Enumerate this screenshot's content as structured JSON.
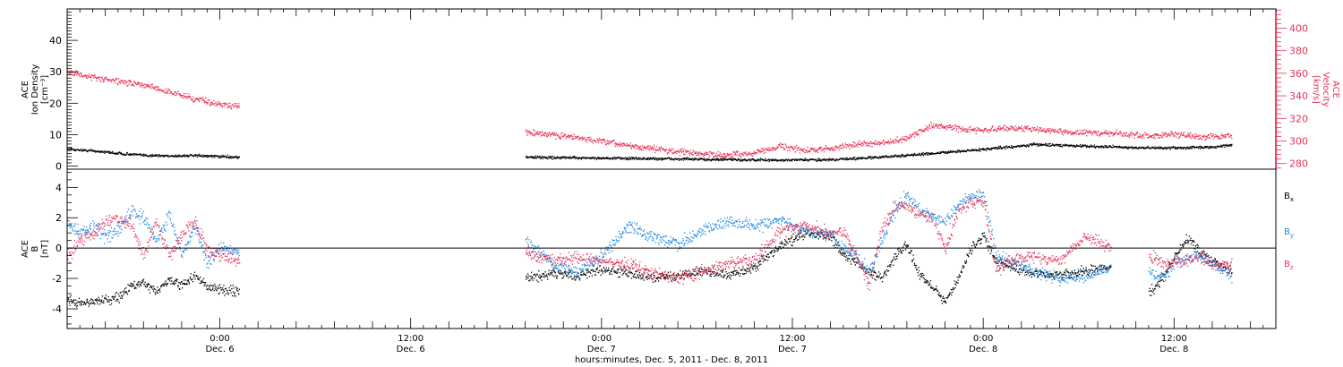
{
  "colors": {
    "black": "#000000",
    "red": "#e8325a",
    "blue": "#1e88e5",
    "axis": "#000000"
  },
  "chart_data": [
    {
      "type": "scatter",
      "panel": "top",
      "ylabel_lines": [
        "ACE",
        "Ion Density",
        "[cm⁻³]"
      ],
      "y2label_lines": [
        "ACE",
        "Velocity",
        "[km/s]"
      ],
      "ylim": [
        -1,
        50
      ],
      "y_ticks": [
        0,
        10,
        20,
        30,
        40
      ],
      "y2lim": [
        275,
        417
      ],
      "y2_ticks": [
        280,
        300,
        320,
        340,
        360,
        380,
        400
      ],
      "xlim_hours": [
        0,
        95
      ],
      "series": [
        {
          "axis": "left",
          "color": "black",
          "segments": [
            {
              "t": [
                0,
                2,
                4,
                6,
                8,
                10,
                13.5
              ],
              "v": [
                5.5,
                5.0,
                4.2,
                3.6,
                3.4,
                3.5,
                3.0
              ]
            },
            {
              "t": [
                36,
                40,
                44,
                48,
                52,
                56,
                60,
                62,
                64,
                66,
                68,
                70,
                72,
                74,
                76,
                78,
                80,
                82,
                84,
                86,
                88,
                90,
                91.5
              ],
              "v": [
                3.0,
                2.8,
                2.6,
                2.4,
                2.2,
                2.0,
                2.2,
                2.6,
                3.0,
                3.6,
                4.2,
                4.8,
                5.5,
                6.2,
                7.0,
                6.8,
                6.5,
                6.3,
                6.0,
                5.9,
                6.0,
                6.3,
                6.8
              ]
            }
          ]
        },
        {
          "axis": "right",
          "color": "red",
          "segments": [
            {
              "t": [
                0,
                2,
                4,
                6,
                8,
                10,
                12,
                13.5
              ],
              "v": [
                362,
                357,
                353,
                350,
                344,
                338,
                333,
                331
              ]
            },
            {
              "t": [
                36,
                39,
                42,
                45,
                48,
                50,
                52,
                54,
                56,
                58,
                60,
                62,
                64,
                66,
                68,
                70,
                72,
                74,
                76,
                78,
                80,
                82,
                84,
                85,
                87,
                89,
                91.5
              ],
              "v": [
                308,
                305,
                300,
                295,
                291,
                289,
                288,
                290,
                296,
                292,
                294,
                298,
                298,
                303,
                315,
                311,
                310,
                312,
                311,
                309,
                308,
                307,
                306,
                305,
                306,
                304,
                305
              ]
            }
          ]
        }
      ]
    },
    {
      "type": "scatter",
      "panel": "bottom",
      "ylabel_lines": [
        "ACE",
        "B",
        "[nT]"
      ],
      "ylim": [
        -5.3,
        5.2
      ],
      "y_ticks": [
        -4,
        -2,
        0,
        2,
        4
      ],
      "xlim_hours": [
        0,
        95
      ],
      "x_ticks_hours": [
        3,
        6,
        9,
        12,
        15,
        18,
        21,
        24,
        27,
        30,
        33,
        36,
        39,
        42,
        45,
        48,
        51,
        54,
        57,
        60,
        63,
        66,
        69,
        72,
        75,
        78,
        81,
        84,
        87,
        90,
        93
      ],
      "x_major_labels": [
        {
          "t": 12,
          "time": "0:00",
          "date": "Dec. 6"
        },
        {
          "t": 27,
          "time": "12:00",
          "date": "Dec. 6"
        },
        {
          "t": 42,
          "time": "0:00",
          "date": "Dec. 7"
        },
        {
          "t": 57,
          "time": "12:00",
          "date": "Dec. 7"
        },
        {
          "t": 72,
          "time": "0:00",
          "date": "Dec. 8"
        },
        {
          "t": 87,
          "time": "12:00",
          "date": "Dec. 8"
        }
      ],
      "xlabel": "hours:minutes, Dec. 5, 2011 - Dec. 8, 2011",
      "series": [
        {
          "name": "Bx",
          "name_main": "B",
          "name_sub": "x",
          "color": "black",
          "segments": [
            {
              "t": [
                0,
                1,
                2,
                3,
                4,
                5,
                6,
                7,
                8,
                9,
                10,
                11,
                12,
                13.5
              ],
              "v": [
                -3.4,
                -3.6,
                -3.5,
                -3.4,
                -3.2,
                -2.5,
                -2.2,
                -2.8,
                -2.0,
                -2.4,
                -1.8,
                -2.6,
                -2.7,
                -2.8
              ]
            },
            {
              "t": [
                36,
                38,
                40,
                42,
                44,
                46,
                48,
                50,
                52,
                54,
                56,
                58,
                60,
                61,
                62,
                63,
                64,
                65,
                66,
                67,
                68,
                69,
                70,
                71,
                72,
                73,
                74,
                76,
                78,
                80,
                82
              ],
              "v": [
                -2.0,
                -1.6,
                -1.8,
                -1.4,
                -1.6,
                -1.9,
                -1.8,
                -1.5,
                -1.8,
                -1.2,
                0.2,
                1.0,
                0.8,
                -0.5,
                -0.8,
                -1.6,
                -2.0,
                -0.5,
                0.2,
                -1.8,
                -2.5,
                -3.5,
                -2.0,
                0.0,
                0.8,
                -0.8,
                -1.2,
                -1.6,
                -1.8,
                -1.5,
                -1.2
              ]
            },
            {
              "t": [
                85,
                86,
                87,
                88,
                89,
                90,
                91.5
              ],
              "v": [
                -3.0,
                -2.0,
                -0.5,
                0.7,
                -0.2,
                -0.8,
                -1.5
              ]
            }
          ]
        },
        {
          "name": "By",
          "name_main": "B",
          "name_sub": "y",
          "color": "blue",
          "segments": [
            {
              "t": [
                0,
                1,
                2,
                3,
                4,
                5,
                6,
                7,
                8,
                9,
                10,
                11,
                12,
                13.5
              ],
              "v": [
                1.8,
                1.0,
                1.5,
                0.8,
                1.2,
                2.5,
                2.0,
                0.5,
                2.2,
                -0.5,
                1.5,
                -1.0,
                0.0,
                -0.2
              ]
            },
            {
              "t": [
                36,
                38,
                40,
                42,
                44,
                46,
                48,
                50,
                52,
                54,
                56,
                58,
                60,
                61,
                62,
                63,
                64,
                65,
                66,
                67,
                68,
                69,
                70,
                71,
                72,
                73,
                74,
                76,
                78,
                80,
                82
              ],
              "v": [
                0.5,
                -1.0,
                -1.5,
                -0.5,
                1.5,
                0.8,
                0.3,
                1.2,
                1.8,
                1.5,
                1.8,
                1.2,
                0.9,
                0.0,
                -0.5,
                -1.6,
                0.5,
                2.5,
                3.5,
                2.5,
                2.0,
                1.8,
                2.8,
                3.5,
                3.6,
                -0.5,
                -0.8,
                -1.5,
                -2.0,
                -1.8,
                -1.2
              ]
            },
            {
              "t": [
                85,
                86,
                87,
                88,
                89,
                90,
                91.5
              ],
              "v": [
                -1.5,
                -2.0,
                -1.0,
                -0.6,
                -0.5,
                -1.0,
                -1.8
              ]
            }
          ]
        },
        {
          "name": "Bz",
          "name_main": "B",
          "name_sub": "z",
          "color": "red",
          "segments": [
            {
              "t": [
                0,
                1,
                2,
                3,
                4,
                5,
                6,
                7,
                8,
                9,
                10,
                11,
                12,
                13.5
              ],
              "v": [
                -0.5,
                0.5,
                1.0,
                1.8,
                2.0,
                1.6,
                -0.5,
                1.8,
                -0.5,
                1.0,
                1.8,
                0.0,
                -0.5,
                -0.8
              ]
            },
            {
              "t": [
                36,
                38,
                40,
                42,
                44,
                46,
                48,
                50,
                52,
                54,
                56,
                58,
                60,
                61,
                62,
                63,
                64,
                65,
                66,
                67,
                68,
                69,
                70,
                71,
                72,
                73,
                74,
                76,
                78,
                80,
                82
              ],
              "v": [
                -0.2,
                -0.8,
                -0.6,
                -0.8,
                -1.0,
                -1.6,
                -2.0,
                -1.5,
                -0.9,
                -0.8,
                1.2,
                1.5,
                1.0,
                1.2,
                -0.5,
                -2.4,
                1.2,
                2.8,
                2.8,
                2.3,
                2.0,
                0.0,
                2.5,
                3.0,
                3.0,
                -1.5,
                -0.8,
                -0.5,
                -0.8,
                0.8,
                0.1
              ]
            },
            {
              "t": [
                85,
                86,
                87,
                88,
                89,
                90,
                91.5
              ],
              "v": [
                -0.5,
                -0.8,
                -1.0,
                -0.8,
                -0.5,
                -1.0,
                -1.2
              ]
            }
          ]
        }
      ]
    }
  ]
}
